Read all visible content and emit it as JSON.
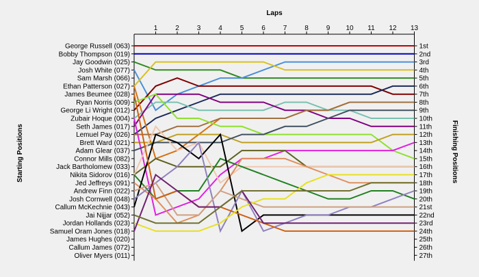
{
  "chart_data": {
    "type": "line",
    "title": "",
    "xlabel": "Laps",
    "ylabel_left": "Starting Positions",
    "ylabel_right": "Finishing Positions",
    "x": [
      0,
      1,
      2,
      3,
      4,
      5,
      6,
      7,
      8,
      9,
      10,
      11,
      12,
      13
    ],
    "x_tick_labels": [
      "1",
      "2",
      "3",
      "4",
      "5",
      "6",
      "7",
      "8",
      "9",
      "10",
      "11",
      "12",
      "13"
    ],
    "drivers": [
      "George Russell (063)",
      "Bobby Thompson (019)",
      "Jay Goodwin (025)",
      "Josh White (077)",
      "Sam Marsh (066)",
      "Ethan Patterson (027)",
      "James Beumee (028)",
      "Ryan Norris (009)",
      "George Li Wright (012)",
      "Zubair Hoque (004)",
      "Seth James (017)",
      "Lemuel Pay (026)",
      "Brett Ward (021)",
      "Adam Glear (037)",
      "Connor Mills (082)",
      "Jack Bartholomew (033)",
      "Nikita Sidorov (016)",
      "Jed Jeffreys (091)",
      "Andrew Finn (022)",
      "Josh Cornwell (048)",
      "Callum McKechnie (043)",
      "Jai Nijjar (052)",
      "Jordan Hollands (023)",
      "Samuel Oram Jones (018)",
      "James Hughes (020)",
      "Callum James (072)",
      "Oliver Myers (011)"
    ],
    "finishing_labels": [
      "1st",
      "2nd",
      "3rd",
      "4th",
      "5th",
      "6th",
      "7th",
      "8th",
      "9th",
      "10th",
      "11th",
      "12th",
      "13th",
      "14th",
      "15th",
      "16th",
      "17th",
      "18th",
      "19th",
      "20th",
      "21st",
      "22nd",
      "23rd",
      "24th",
      "25th",
      "26th",
      "27th"
    ],
    "grid": false,
    "series": [
      {
        "color": "#c00000",
        "positions": [
          1,
          1,
          1,
          1,
          1,
          1,
          1,
          1,
          1,
          1,
          1,
          1,
          1,
          1
        ]
      },
      {
        "color": "#0000c0",
        "positions": [
          2,
          2,
          2,
          2,
          2,
          2,
          2,
          2,
          2,
          2,
          2,
          2,
          2,
          2
        ]
      },
      {
        "color": "#2e8b22",
        "positions": [
          3,
          4,
          4,
          4,
          4,
          5,
          5,
          5,
          5,
          5,
          5,
          5,
          5,
          5
        ]
      },
      {
        "color": "#4a8fd8",
        "positions": [
          4,
          9,
          7,
          6,
          5,
          5,
          4,
          3,
          3,
          3,
          3,
          3,
          3,
          3
        ]
      },
      {
        "color": "#d8c020",
        "positions": [
          6,
          3,
          3,
          3,
          3,
          3,
          3,
          4,
          4,
          4,
          4,
          4,
          4,
          4
        ]
      },
      {
        "color": "#800000",
        "positions": [
          9,
          6,
          5,
          6,
          6,
          6,
          6,
          6,
          6,
          6,
          6,
          6,
          7,
          7
        ]
      },
      {
        "color": "#1a2a5a",
        "positions": [
          12,
          10,
          9,
          8,
          7,
          7,
          7,
          7,
          7,
          7,
          7,
          7,
          6,
          6
        ]
      },
      {
        "color": "#d87010",
        "positions": [
          6,
          15,
          14,
          12,
          10,
          10,
          10,
          10,
          9,
          9,
          8,
          8,
          8,
          8
        ]
      },
      {
        "color": "#78c0b0",
        "positions": [
          10,
          8,
          8,
          9,
          9,
          9,
          9,
          8,
          8,
          9,
          9,
          10,
          10,
          10
        ]
      },
      {
        "color": "#800080",
        "positions": [
          11,
          7,
          7,
          7,
          8,
          8,
          8,
          9,
          9,
          10,
          10,
          11,
          11,
          11
        ]
      },
      {
        "color": "#a07040",
        "positions": [
          12,
          12,
          11,
          11,
          10,
          10,
          10,
          10,
          9,
          9,
          8,
          8,
          8,
          8
        ]
      },
      {
        "color": "#90e030",
        "positions": [
          8,
          7,
          10,
          10,
          11,
          11,
          12,
          12,
          12,
          12,
          12,
          12,
          14,
          15
        ]
      },
      {
        "color": "#c0a020",
        "positions": [
          13,
          13,
          12,
          12,
          12,
          13,
          13,
          13,
          13,
          13,
          13,
          13,
          12,
          12
        ]
      },
      {
        "color": "#e020e0",
        "positions": [
          10,
          22,
          21,
          20,
          17,
          15,
          15,
          14,
          14,
          14,
          14,
          14,
          14,
          13
        ]
      },
      {
        "color": "#405060",
        "positions": [
          14,
          13,
          13,
          13,
          13,
          12,
          12,
          11,
          11,
          10,
          9,
          9,
          9,
          9
        ]
      },
      {
        "color": "#606020",
        "positions": [
          17,
          15,
          16,
          16,
          16,
          14,
          14,
          14,
          16,
          16,
          16,
          16,
          16,
          16
        ]
      },
      {
        "color": "#f0c8b0",
        "positions": [
          17,
          11,
          14,
          13,
          18,
          16,
          16,
          16,
          16,
          16,
          16,
          16,
          16,
          16
        ]
      },
      {
        "color": "#208020",
        "positions": [
          17,
          20,
          19,
          19,
          15,
          16,
          17,
          18,
          19,
          20,
          20,
          19,
          19,
          20
        ]
      },
      {
        "color": "#e09060",
        "positions": [
          18,
          20,
          23,
          22,
          19,
          15,
          15,
          15,
          16,
          17,
          18,
          18,
          18,
          18
        ]
      },
      {
        "color": "#000000",
        "positions": [
          21,
          12,
          13,
          15,
          12,
          24,
          22,
          22,
          22,
          22,
          22,
          22,
          22,
          22
        ]
      },
      {
        "color": "#9080c0",
        "positions": [
          20,
          18,
          16,
          13,
          24,
          19,
          24,
          23,
          22,
          22,
          21,
          21,
          20,
          19
        ]
      },
      {
        "color": "#d0a080",
        "positions": [
          19,
          18,
          22,
          22,
          19,
          20,
          21,
          21,
          21,
          21,
          21,
          21,
          21,
          21
        ]
      },
      {
        "color": "#d06010",
        "positions": [
          7,
          20,
          19,
          21,
          21,
          22,
          23,
          24,
          24,
          24,
          24,
          24,
          24,
          24
        ]
      },
      {
        "color": "#e8e020",
        "positions": [
          23,
          24,
          24,
          24,
          23,
          21,
          20,
          20,
          18,
          17,
          17,
          17,
          17,
          17
        ]
      },
      {
        "color": "#702070",
        "positions": [
          24,
          17,
          19,
          21,
          21,
          19,
          23,
          23,
          23,
          23,
          23,
          23,
          23,
          23
        ]
      },
      {
        "color": "#707030",
        "positions": [
          22,
          23,
          23,
          23,
          21,
          19,
          19,
          19,
          19,
          19,
          19,
          18,
          18,
          18
        ]
      }
    ]
  }
}
